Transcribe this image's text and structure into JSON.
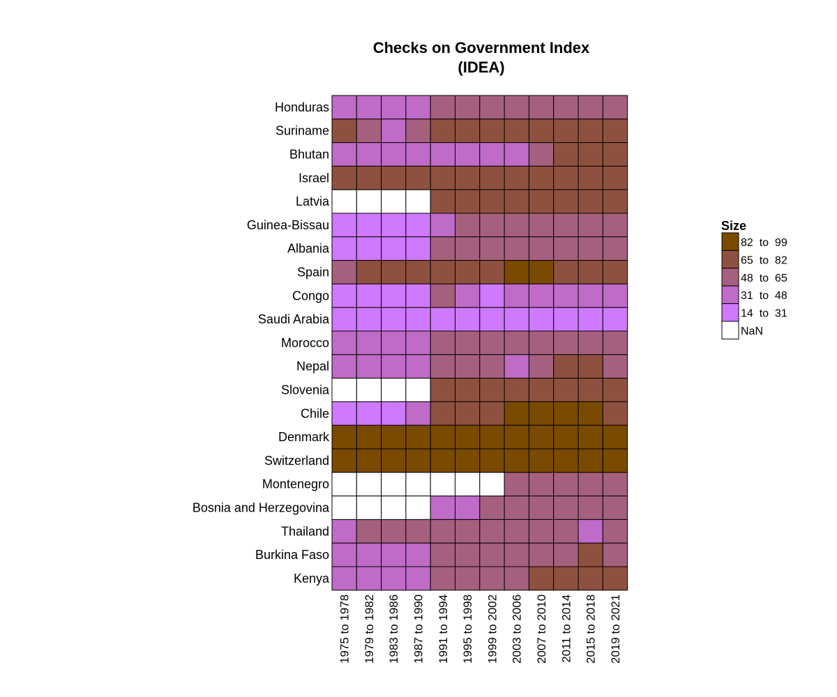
{
  "chart_data": {
    "type": "heatmap",
    "title": [
      "Checks on Government Index",
      "(IDEA)"
    ],
    "rows": [
      "Honduras",
      "Suriname",
      "Bhutan",
      "Israel",
      "Latvia",
      "Guinea-Bissau",
      "Albania",
      "Spain",
      "Congo",
      "Saudi Arabia",
      "Morocco",
      "Nepal",
      "Slovenia",
      "Chile",
      "Denmark",
      "Switzerland",
      "Montenegro",
      "Bosnia and Herzegovina",
      "Thailand",
      "Burkina Faso",
      "Kenya"
    ],
    "columns": [
      "1975 to 1978",
      "1979 to 1982",
      "1983 to 1986",
      "1987 to 1990",
      "1991 to 1994",
      "1995 to 1998",
      "1999 to 2002",
      "2003 to 2006",
      "2007 to 2010",
      "2011 to 2014",
      "2015 to 2018",
      "2019 to 2021"
    ],
    "legend": {
      "title": "Size",
      "bins": [
        {
          "label": "82  to  99",
          "color": "#7a4a00"
        },
        {
          "label": "65  to  82",
          "color": "#8f513f"
        },
        {
          "label": "48  to  65",
          "color": "#a6607f"
        },
        {
          "label": "31  to  48",
          "color": "#bf6bc7"
        },
        {
          "label": "14  to  31",
          "color": "#cf79ff"
        },
        {
          "label": "NaN",
          "color": "#ffffff"
        }
      ]
    },
    "bin_codes_note": "4=82-99, 3=65-82, 2=48-65, 1=31-48, 0=14-31, -1=NaN",
    "values": [
      [
        1,
        1,
        1,
        1,
        2,
        2,
        2,
        2,
        2,
        2,
        2,
        2
      ],
      [
        3,
        2,
        1,
        2,
        3,
        3,
        3,
        3,
        3,
        3,
        3,
        3
      ],
      [
        1,
        1,
        1,
        1,
        1,
        1,
        1,
        1,
        2,
        3,
        3,
        3
      ],
      [
        3,
        3,
        3,
        3,
        3,
        3,
        3,
        3,
        3,
        3,
        3,
        3
      ],
      [
        -1,
        -1,
        -1,
        -1,
        3,
        3,
        3,
        3,
        3,
        3,
        3,
        3
      ],
      [
        0,
        0,
        0,
        0,
        1,
        2,
        2,
        2,
        2,
        2,
        2,
        2
      ],
      [
        0,
        0,
        0,
        0,
        2,
        2,
        2,
        2,
        2,
        2,
        2,
        2
      ],
      [
        2,
        3,
        3,
        3,
        3,
        3,
        3,
        4,
        4,
        3,
        3,
        3
      ],
      [
        0,
        0,
        0,
        0,
        2,
        1,
        0,
        1,
        1,
        1,
        1,
        1
      ],
      [
        0,
        0,
        0,
        0,
        0,
        0,
        0,
        0,
        0,
        0,
        0,
        0
      ],
      [
        1,
        1,
        1,
        1,
        2,
        2,
        2,
        2,
        2,
        2,
        2,
        2
      ],
      [
        1,
        1,
        1,
        1,
        2,
        2,
        2,
        1,
        2,
        3,
        3,
        2
      ],
      [
        -1,
        -1,
        -1,
        -1,
        3,
        3,
        3,
        3,
        3,
        3,
        3,
        3
      ],
      [
        0,
        0,
        0,
        1,
        3,
        3,
        3,
        4,
        4,
        4,
        4,
        3
      ],
      [
        4,
        4,
        4,
        4,
        4,
        4,
        4,
        4,
        4,
        4,
        4,
        4
      ],
      [
        4,
        4,
        4,
        4,
        4,
        4,
        4,
        4,
        4,
        4,
        4,
        4
      ],
      [
        -1,
        -1,
        -1,
        -1,
        -1,
        -1,
        -1,
        2,
        2,
        2,
        2,
        2
      ],
      [
        -1,
        -1,
        -1,
        -1,
        1,
        1,
        2,
        2,
        2,
        2,
        2,
        2
      ],
      [
        1,
        2,
        2,
        2,
        2,
        2,
        2,
        2,
        2,
        2,
        1,
        2
      ],
      [
        1,
        1,
        1,
        1,
        2,
        2,
        2,
        2,
        2,
        2,
        3,
        2
      ],
      [
        1,
        1,
        1,
        1,
        2,
        2,
        2,
        2,
        3,
        3,
        3,
        3
      ]
    ]
  }
}
